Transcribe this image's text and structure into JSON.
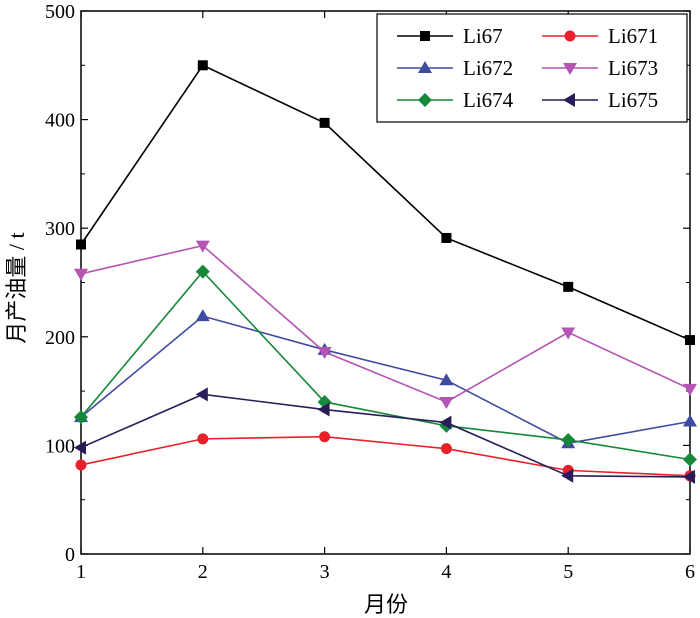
{
  "chart_data": {
    "type": "line",
    "title": "",
    "xlabel": "月份",
    "ylabel": "月产油量 / t",
    "x": [
      1,
      2,
      3,
      4,
      5,
      6
    ],
    "xlim": [
      1,
      6
    ],
    "ylim": [
      0,
      500
    ],
    "xticks": [
      "1",
      "2",
      "3",
      "4",
      "5",
      "6"
    ],
    "yticks": [
      "0",
      "100",
      "200",
      "300",
      "400",
      "500"
    ],
    "grid": false,
    "legend_position": "top-right",
    "series": [
      {
        "name": "Li67",
        "color": "#000000",
        "marker": "square",
        "values": [
          285,
          450,
          397,
          291,
          246,
          197
        ]
      },
      {
        "name": "Li671",
        "color": "#e8202a",
        "marker": "circle",
        "values": [
          82,
          106,
          108,
          97,
          77,
          72
        ]
      },
      {
        "name": "Li672",
        "color": "#3f4ba0",
        "marker": "triangle-up",
        "values": [
          126,
          219,
          188,
          160,
          102,
          122
        ]
      },
      {
        "name": "Li673",
        "color": "#b454b4",
        "marker": "triangle-down",
        "values": [
          258,
          284,
          186,
          140,
          204,
          152
        ]
      },
      {
        "name": "Li674",
        "color": "#15883a",
        "marker": "diamond",
        "values": [
          126,
          260,
          140,
          118,
          105,
          87
        ]
      },
      {
        "name": "Li675",
        "color": "#2a1c58",
        "marker": "triangle-left",
        "values": [
          98,
          147,
          133,
          121,
          72,
          71
        ]
      }
    ]
  }
}
